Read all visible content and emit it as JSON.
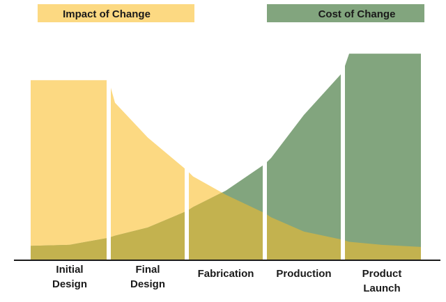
{
  "legend": [
    {
      "label": "Impact of Change",
      "color": "#fcd982"
    },
    {
      "label": "Cost of Change",
      "color": "#82a57e"
    }
  ],
  "colors": {
    "impact": "#fcd982",
    "cost": "#82a57e",
    "overlap": "#c3b24f",
    "axis": "#1a1a1a",
    "text": "#1a1a1a"
  },
  "chart_data": {
    "type": "area",
    "title": "",
    "xlabel": "",
    "ylabel": "",
    "ylim": [
      0,
      100
    ],
    "grid": false,
    "legend_position": "top",
    "categories": [
      [
        "Initial",
        "Design"
      ],
      [
        "Final",
        "Design"
      ],
      [
        "Fabrication"
      ],
      [
        "Production"
      ],
      [
        "Product",
        "Launch"
      ]
    ],
    "category_x": [
      0.5,
      1.5,
      2.5,
      3.5,
      4.5
    ],
    "series": [
      {
        "name": "Impact of Change",
        "color": "#fcd982",
        "x": [
          0,
          1,
          1.08,
          1.5,
          2,
          2.08,
          2.5,
          3,
          3.08,
          3.5,
          4,
          4.08,
          4.5,
          5
        ],
        "values": [
          88,
          88,
          77,
          60,
          44,
          41,
          32,
          23,
          21,
          14,
          10,
          9,
          7.5,
          6.5
        ]
      },
      {
        "name": "Cost of Change",
        "color": "#82a57e",
        "x": [
          0,
          0.5,
          1,
          1.08,
          1.5,
          2,
          2.08,
          2.5,
          3,
          3.08,
          3.5,
          4,
          4.08,
          5
        ],
        "values": [
          7,
          7.5,
          11,
          12,
          16,
          24,
          26,
          34,
          47,
          50,
          71,
          92,
          101,
          101
        ]
      }
    ],
    "stage_dividers": [
      1,
      2,
      3,
      4
    ]
  }
}
